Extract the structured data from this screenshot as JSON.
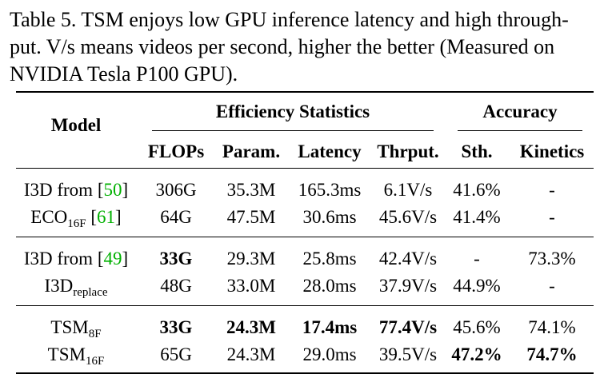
{
  "caption": {
    "line1": "Table 5. TSM enjoys low GPU inference latency and high through-",
    "line2": "put. V/s means videos per second, higher the better (Measured on",
    "line3": "NVIDIA Tesla P100 GPU)."
  },
  "header": {
    "model": "Model",
    "group_efficiency": "Efficiency Statistics",
    "group_accuracy": "Accuracy",
    "columns": [
      "FLOPs",
      "Param.",
      "Latency",
      "Thrput.",
      "Sth.",
      "Kinetics"
    ]
  },
  "rows": [
    {
      "model_base": "I3D from [",
      "cite": "50",
      "model_end": "]",
      "sub": "",
      "flops": "306G",
      "param": "35.3M",
      "latency": "165.3ms",
      "thrput": "6.1V/s",
      "sth": "41.6%",
      "kinetics": "-"
    },
    {
      "model_base": "ECO",
      "sub": "16F",
      "cite_pre": " [",
      "cite": "61",
      "model_end": "]",
      "flops": "64G",
      "param": "47.5M",
      "latency": "30.6ms",
      "thrput": "45.6V/s",
      "sth": "41.4%",
      "kinetics": "-"
    },
    {
      "model_base": "I3D from [",
      "cite": "49",
      "model_end": "]",
      "sub": "",
      "flops": "33G",
      "param": "29.3M",
      "latency": "25.8ms",
      "thrput": "42.4V/s",
      "sth": "-",
      "kinetics": "73.3%"
    },
    {
      "model_base": "I3D",
      "sub": "replace",
      "flops": "48G",
      "param": "33.0M",
      "latency": "28.0ms",
      "thrput": "37.9V/s",
      "sth": "44.9%",
      "kinetics": "-"
    },
    {
      "model_base": "TSM",
      "sub": "8F",
      "flops": "33G",
      "param": "24.3M",
      "latency": "17.4ms",
      "thrput": "77.4V/s",
      "sth": "45.6%",
      "kinetics": "74.1%"
    },
    {
      "model_base": "TSM",
      "sub": "16F",
      "flops": "65G",
      "param": "24.3M",
      "latency": "29.0ms",
      "thrput": "39.5V/s",
      "sth": "47.2%",
      "kinetics": "74.7%"
    }
  ]
}
